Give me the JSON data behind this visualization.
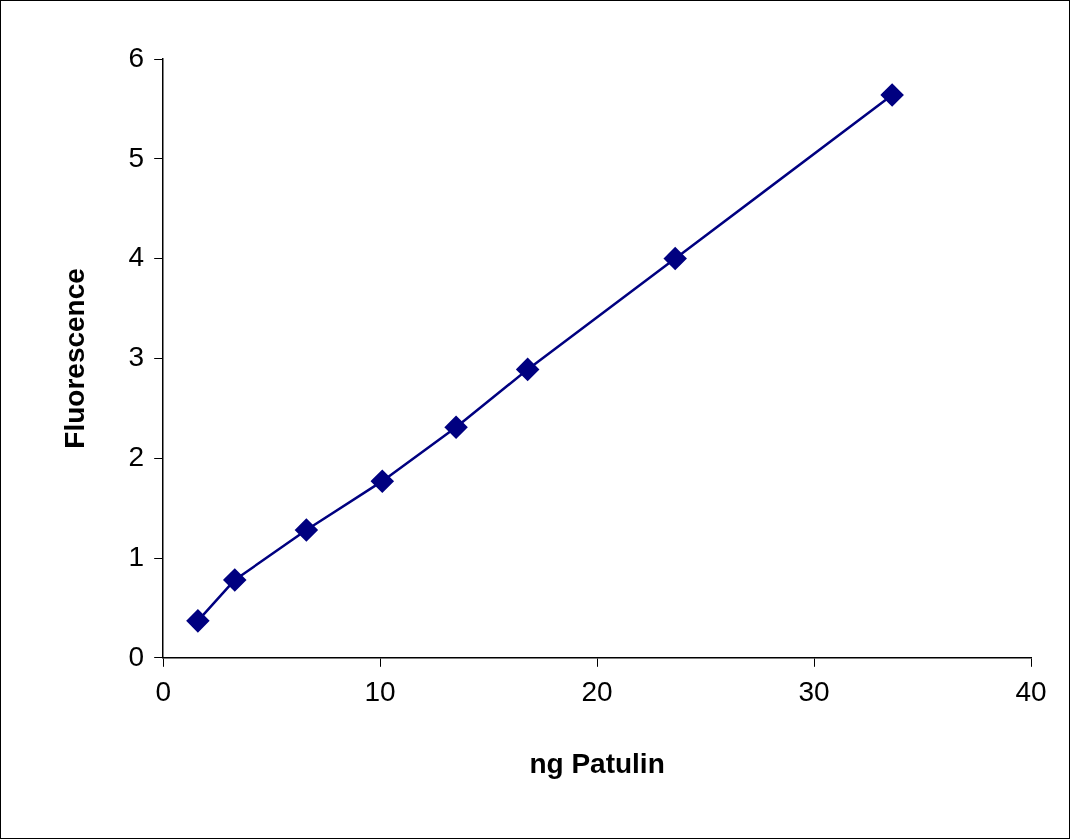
{
  "chart_data": {
    "type": "line",
    "xlabel": "ng Patulin",
    "ylabel": "Fluorescence",
    "x": [
      1.6,
      3.3,
      6.6,
      10.1,
      13.5,
      16.8,
      23.6,
      33.6
    ],
    "series": [
      {
        "color": "#000080",
        "values": [
          0.37,
          0.78,
          1.28,
          1.77,
          2.31,
          2.89,
          4.0,
          5.64
        ]
      }
    ],
    "xlim": [
      0,
      40
    ],
    "xticks": [
      0,
      10,
      20,
      30,
      40
    ],
    "ylim": [
      0,
      6
    ],
    "yticks": [
      0,
      1,
      2,
      3,
      4,
      5,
      6
    ],
    "grid": false,
    "legend": false,
    "marker": "diamond",
    "line_style": "solid"
  }
}
